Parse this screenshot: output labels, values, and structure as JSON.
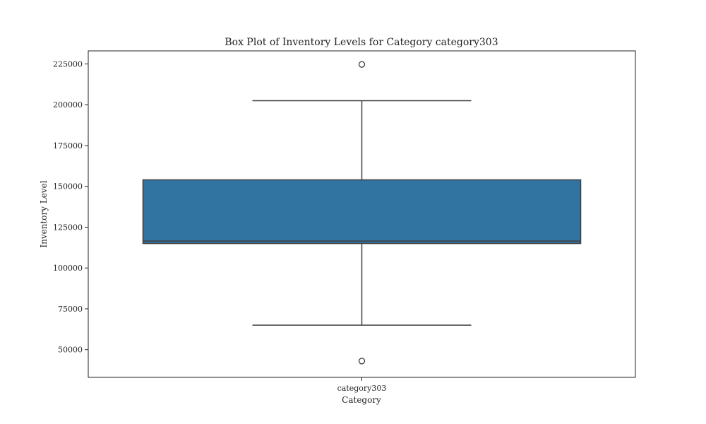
{
  "chart_data": {
    "type": "box",
    "title": "Box Plot of Inventory Levels for Category category303",
    "xlabel": "Category",
    "ylabel": "Inventory Level",
    "categories": [
      "category303"
    ],
    "ylim": [
      33000,
      233000
    ],
    "yticks": [
      50000,
      75000,
      100000,
      125000,
      150000,
      175000,
      200000,
      225000
    ],
    "grid": false,
    "box_color": "#3274a1",
    "line_color": "#3f3f3f",
    "boxes": [
      {
        "category": "category303",
        "whisker_low": 65000,
        "q1": 115000,
        "median": 116500,
        "q3": 154000,
        "whisker_high": 202500,
        "outliers": [
          43000,
          224700
        ]
      }
    ]
  }
}
